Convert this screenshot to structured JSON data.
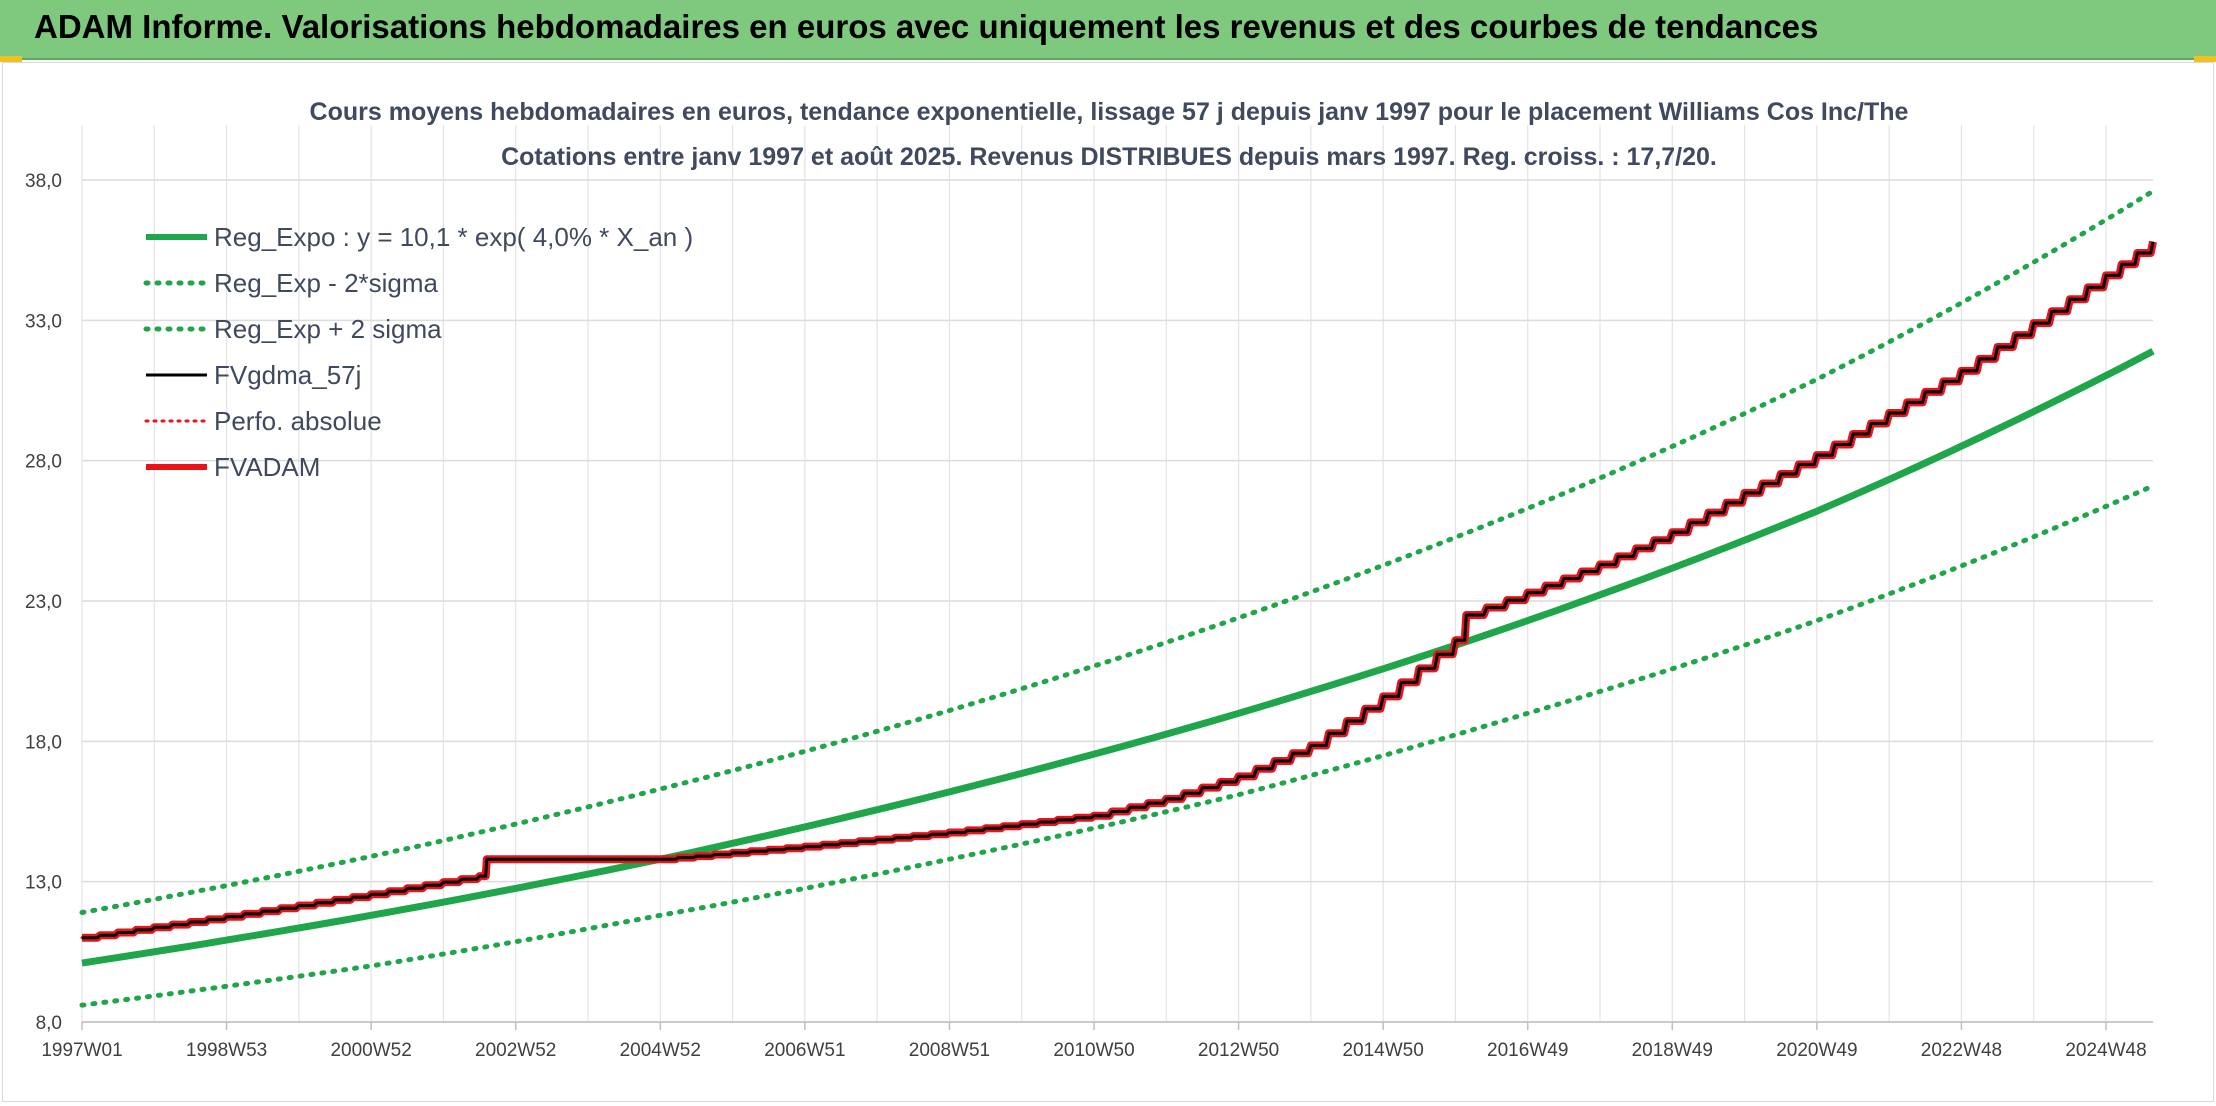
{
  "banner": {
    "title": "ADAM Informe. Valorisations hebdomadaires en euros avec uniquement les revenus et des courbes de tendances",
    "color": "#7ec97e"
  },
  "chart_data": {
    "type": "line",
    "title_line1": "Cours moyens hebdomadaires en euros, tendance exponentielle, lissage 57 j depuis janv 1997 pour le placement Williams Cos Inc/The",
    "title_line2": "Cotations entre janv 1997 et août 2025. Revenus DISTRIBUES depuis mars 1997. Reg. croiss. : 17,7/20.",
    "xlabel": "",
    "ylabel": "",
    "ylim": [
      8.0,
      38.0
    ],
    "y_ticks": [
      "8,0",
      "13,0",
      "18,0",
      "23,0",
      "28,0",
      "33,0",
      "38,0"
    ],
    "y_tick_values": [
      8,
      13,
      18,
      23,
      28,
      33,
      38
    ],
    "x_range": [
      1997.0,
      2025.65
    ],
    "x_ticks": [
      "1997W01",
      "1998W53",
      "2000W52",
      "2002W52",
      "2004W52",
      "2006W51",
      "2008W51",
      "2010W50",
      "2012W50",
      "2014W50",
      "2016W49",
      "2018W49",
      "2020W49",
      "2022W48",
      "2024W48"
    ],
    "x_tick_values": [
      1997.0,
      1999.0,
      2001.0,
      2003.0,
      2005.0,
      2007.0,
      2009.0,
      2011.0,
      2013.0,
      2015.0,
      2017.0,
      2019.0,
      2021.0,
      2023.0,
      2025.0
    ],
    "grid": true,
    "legend_position": "top-left",
    "series": [
      {
        "name": "Reg_Expo : y = 10,1 * exp( 4,0% *  X_an )",
        "color": "#1fa64a",
        "style": "solid",
        "x": [
          1997.0,
          2001.0,
          2005.0,
          2009.0,
          2013.0,
          2017.0,
          2021.0,
          2025.65
        ],
        "y": [
          10.1,
          11.8,
          13.8,
          16.2,
          19.0,
          22.3,
          26.2,
          31.9
        ]
      },
      {
        "name": "Reg_Exp - 2*sigma",
        "color": "#1fa64a",
        "style": "dotted",
        "x": [
          1997.0,
          2001.0,
          2005.0,
          2009.0,
          2013.0,
          2017.0,
          2021.0,
          2025.65
        ],
        "y": [
          8.6,
          10.0,
          11.8,
          13.8,
          16.1,
          19.0,
          22.3,
          27.1
        ]
      },
      {
        "name": "Reg_Exp + 2 sigma",
        "color": "#1fa64a",
        "style": "dotted",
        "x": [
          1997.0,
          2001.0,
          2005.0,
          2009.0,
          2013.0,
          2017.0,
          2021.0,
          2025.65
        ],
        "y": [
          11.9,
          13.9,
          16.3,
          19.1,
          22.4,
          26.3,
          30.9,
          37.6
        ]
      },
      {
        "name": "FVgdma_57j",
        "color": "#000000",
        "style": "solid",
        "x": [
          1997.0,
          1999.0,
          2001.0,
          2002.5,
          2002.6,
          2005.0,
          2007.0,
          2009.0,
          2011.0,
          2012.0,
          2013.0,
          2014.0,
          2015.0,
          2016.0,
          2016.15,
          2017.0,
          2018.0,
          2019.0,
          2020.0,
          2021.0,
          2022.0,
          2023.0,
          2024.0,
          2025.0,
          2025.65
        ],
        "y": [
          11.0,
          11.75,
          12.55,
          13.2,
          13.8,
          13.8,
          14.25,
          14.75,
          15.35,
          15.95,
          16.75,
          17.85,
          19.6,
          21.6,
          22.5,
          23.3,
          24.3,
          25.45,
          26.85,
          28.2,
          29.7,
          31.2,
          32.9,
          34.6,
          35.8
        ]
      },
      {
        "name": "Perfo. absolue",
        "color": "#e8141a",
        "style": "dotted",
        "x": [
          1997.0,
          1999.0,
          2001.0,
          2002.5,
          2002.6,
          2005.0,
          2007.0,
          2009.0,
          2011.0,
          2012.0,
          2013.0,
          2014.0,
          2015.0,
          2016.0,
          2016.15,
          2017.0,
          2018.0,
          2019.0,
          2020.0,
          2021.0,
          2022.0,
          2023.0,
          2024.0,
          2025.0,
          2025.65
        ],
        "y": [
          11.0,
          11.75,
          12.55,
          13.2,
          13.8,
          13.8,
          14.25,
          14.75,
          15.35,
          15.95,
          16.75,
          17.85,
          19.6,
          21.6,
          22.5,
          23.3,
          24.3,
          25.45,
          26.85,
          28.2,
          29.7,
          31.2,
          32.9,
          34.6,
          35.8
        ]
      },
      {
        "name": "FVADAM",
        "color": "#e8141a",
        "style": "solid",
        "x": [
          1997.0,
          1999.0,
          2001.0,
          2002.5,
          2002.6,
          2005.0,
          2007.0,
          2009.0,
          2011.0,
          2012.0,
          2013.0,
          2014.0,
          2015.0,
          2016.0,
          2016.15,
          2017.0,
          2018.0,
          2019.0,
          2020.0,
          2021.0,
          2022.0,
          2023.0,
          2024.0,
          2025.0,
          2025.65
        ],
        "y": [
          11.0,
          11.75,
          12.55,
          13.2,
          13.8,
          13.8,
          14.25,
          14.75,
          15.35,
          15.95,
          16.75,
          17.85,
          19.6,
          21.6,
          22.5,
          23.3,
          24.3,
          25.45,
          26.85,
          28.2,
          29.7,
          31.2,
          32.9,
          34.6,
          35.8
        ]
      }
    ]
  }
}
